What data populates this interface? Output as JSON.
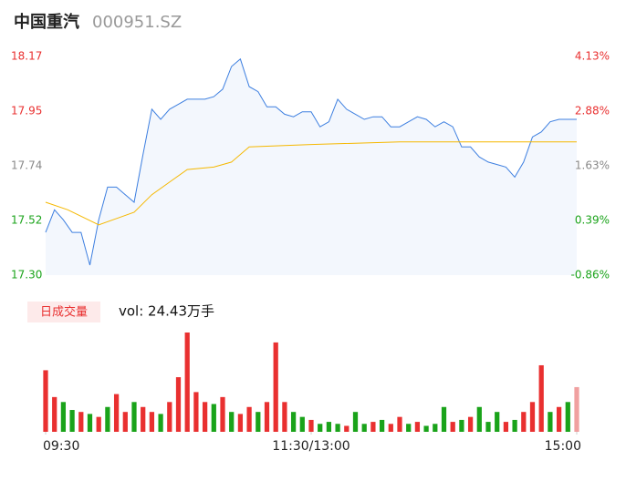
{
  "header": {
    "name": "中国重汽",
    "code": "000951.SZ"
  },
  "chart_data": [
    {
      "type": "line",
      "xlim": [
        0,
        240
      ],
      "ylim": [
        17.3,
        18.17
      ],
      "yticks": [
        {
          "value": 17.3,
          "label": "17.30"
        },
        {
          "value": 17.5175,
          "label": "17.52"
        },
        {
          "value": 17.735,
          "label": "17.74"
        },
        {
          "value": 17.9525,
          "label": "17.95"
        },
        {
          "value": 18.17,
          "label": "18.17"
        }
      ],
      "ytick_colors": [
        "#1aa31a",
        "#1aa31a",
        "#888888",
        "#e93030",
        "#e93030"
      ],
      "y2lim": [
        -0.86,
        4.13
      ],
      "y2ticks": [
        {
          "value": -0.86,
          "label": "-0.86%"
        },
        {
          "value": 0.39,
          "label": "0.39%"
        },
        {
          "value": 1.63,
          "label": "1.63%"
        },
        {
          "value": 2.88,
          "label": "2.88%"
        },
        {
          "value": 4.13,
          "label": "4.13%"
        }
      ],
      "y2tick_colors": [
        "#1aa31a",
        "#1aa31a",
        "#888888",
        "#e93030",
        "#e93030"
      ],
      "area_color": "#f3f7fd",
      "series": [
        {
          "color": "#3d7fe0",
          "x": [
            0,
            4,
            8,
            12,
            16,
            20,
            24,
            28,
            32,
            36,
            40,
            44,
            48,
            52,
            56,
            60,
            64,
            68,
            72,
            76,
            80,
            84,
            88,
            92,
            96,
            100,
            104,
            108,
            112,
            116,
            120,
            124,
            128,
            132,
            136,
            140,
            144,
            148,
            152,
            156,
            160,
            164,
            168,
            172,
            176,
            180,
            184,
            188,
            192,
            196,
            200,
            204,
            208,
            212,
            216,
            220,
            224,
            228,
            232,
            236,
            240
          ],
          "values": [
            17.47,
            17.56,
            17.52,
            17.47,
            17.47,
            17.34,
            17.52,
            17.65,
            17.65,
            17.62,
            17.59,
            17.78,
            17.96,
            17.92,
            17.96,
            17.98,
            18.0,
            18.0,
            18.0,
            18.01,
            18.04,
            18.13,
            18.16,
            18.05,
            18.03,
            17.97,
            17.97,
            17.94,
            17.93,
            17.95,
            17.95,
            17.89,
            17.91,
            18.0,
            17.96,
            17.94,
            17.92,
            17.93,
            17.93,
            17.89,
            17.89,
            17.91,
            17.93,
            17.92,
            17.89,
            17.91,
            17.89,
            17.81,
            17.81,
            17.77,
            17.75,
            17.74,
            17.73,
            17.69,
            17.75,
            17.85,
            17.87,
            17.91,
            17.92,
            17.92,
            17.92
          ]
        },
        {
          "color": "#f5b800",
          "x": [
            0,
            10,
            24,
            40,
            48,
            56,
            64,
            76,
            84,
            92,
            120,
            160,
            240
          ],
          "values": [
            17.59,
            17.56,
            17.5,
            17.55,
            17.62,
            17.67,
            17.72,
            17.73,
            17.75,
            17.81,
            17.82,
            17.83,
            17.83
          ]
        }
      ]
    },
    {
      "type": "bar",
      "legend_label": "日成交量",
      "summary": "vol: 24.43万手",
      "xlim": [
        0,
        240
      ],
      "ylim": [
        0,
        100
      ],
      "xticks": [
        {
          "value": 0,
          "label": "09:30"
        },
        {
          "value": 120,
          "label": "11:30/13:00"
        },
        {
          "value": 240,
          "label": "15:00"
        }
      ],
      "x": [
        0,
        4,
        8,
        12,
        16,
        20,
        24,
        28,
        32,
        36,
        40,
        44,
        48,
        52,
        56,
        60,
        64,
        68,
        72,
        76,
        80,
        84,
        88,
        92,
        96,
        100,
        104,
        108,
        112,
        116,
        120,
        124,
        128,
        132,
        136,
        140,
        144,
        148,
        152,
        156,
        160,
        164,
        168,
        172,
        176,
        180,
        184,
        188,
        192,
        196,
        200,
        204,
        208,
        212,
        216,
        220,
        224,
        228,
        232,
        236,
        240
      ],
      "values": [
        62,
        35,
        30,
        22,
        20,
        18,
        15,
        25,
        38,
        20,
        30,
        25,
        20,
        18,
        30,
        55,
        100,
        40,
        30,
        28,
        35,
        20,
        18,
        25,
        20,
        30,
        90,
        30,
        20,
        15,
        12,
        8,
        10,
        8,
        6,
        20,
        8,
        10,
        12,
        8,
        15,
        8,
        10,
        6,
        8,
        25,
        10,
        12,
        15,
        25,
        10,
        20,
        10,
        12,
        20,
        30,
        67,
        20,
        25,
        30,
        45
      ],
      "colors": [
        "#e93030",
        "#e93030",
        "#1aa31a",
        "#1aa31a",
        "#e93030",
        "#1aa31a",
        "#e93030",
        "#1aa31a",
        "#e93030",
        "#e93030",
        "#1aa31a",
        "#e93030",
        "#e93030",
        "#1aa31a",
        "#e93030",
        "#e93030",
        "#e93030",
        "#e93030",
        "#e93030",
        "#1aa31a",
        "#e93030",
        "#1aa31a",
        "#e93030",
        "#e93030",
        "#1aa31a",
        "#e93030",
        "#e93030",
        "#e93030",
        "#1aa31a",
        "#1aa31a",
        "#e93030",
        "#1aa31a",
        "#1aa31a",
        "#1aa31a",
        "#e93030",
        "#1aa31a",
        "#1aa31a",
        "#e93030",
        "#1aa31a",
        "#e93030",
        "#e93030",
        "#1aa31a",
        "#e93030",
        "#1aa31a",
        "#1aa31a",
        "#1aa31a",
        "#e93030",
        "#1aa31a",
        "#e93030",
        "#1aa31a",
        "#1aa31a",
        "#1aa31a",
        "#e93030",
        "#1aa31a",
        "#e93030",
        "#e93030",
        "#e93030",
        "#1aa31a",
        "#e93030",
        "#1aa31a",
        "#f0a0a0"
      ]
    }
  ]
}
